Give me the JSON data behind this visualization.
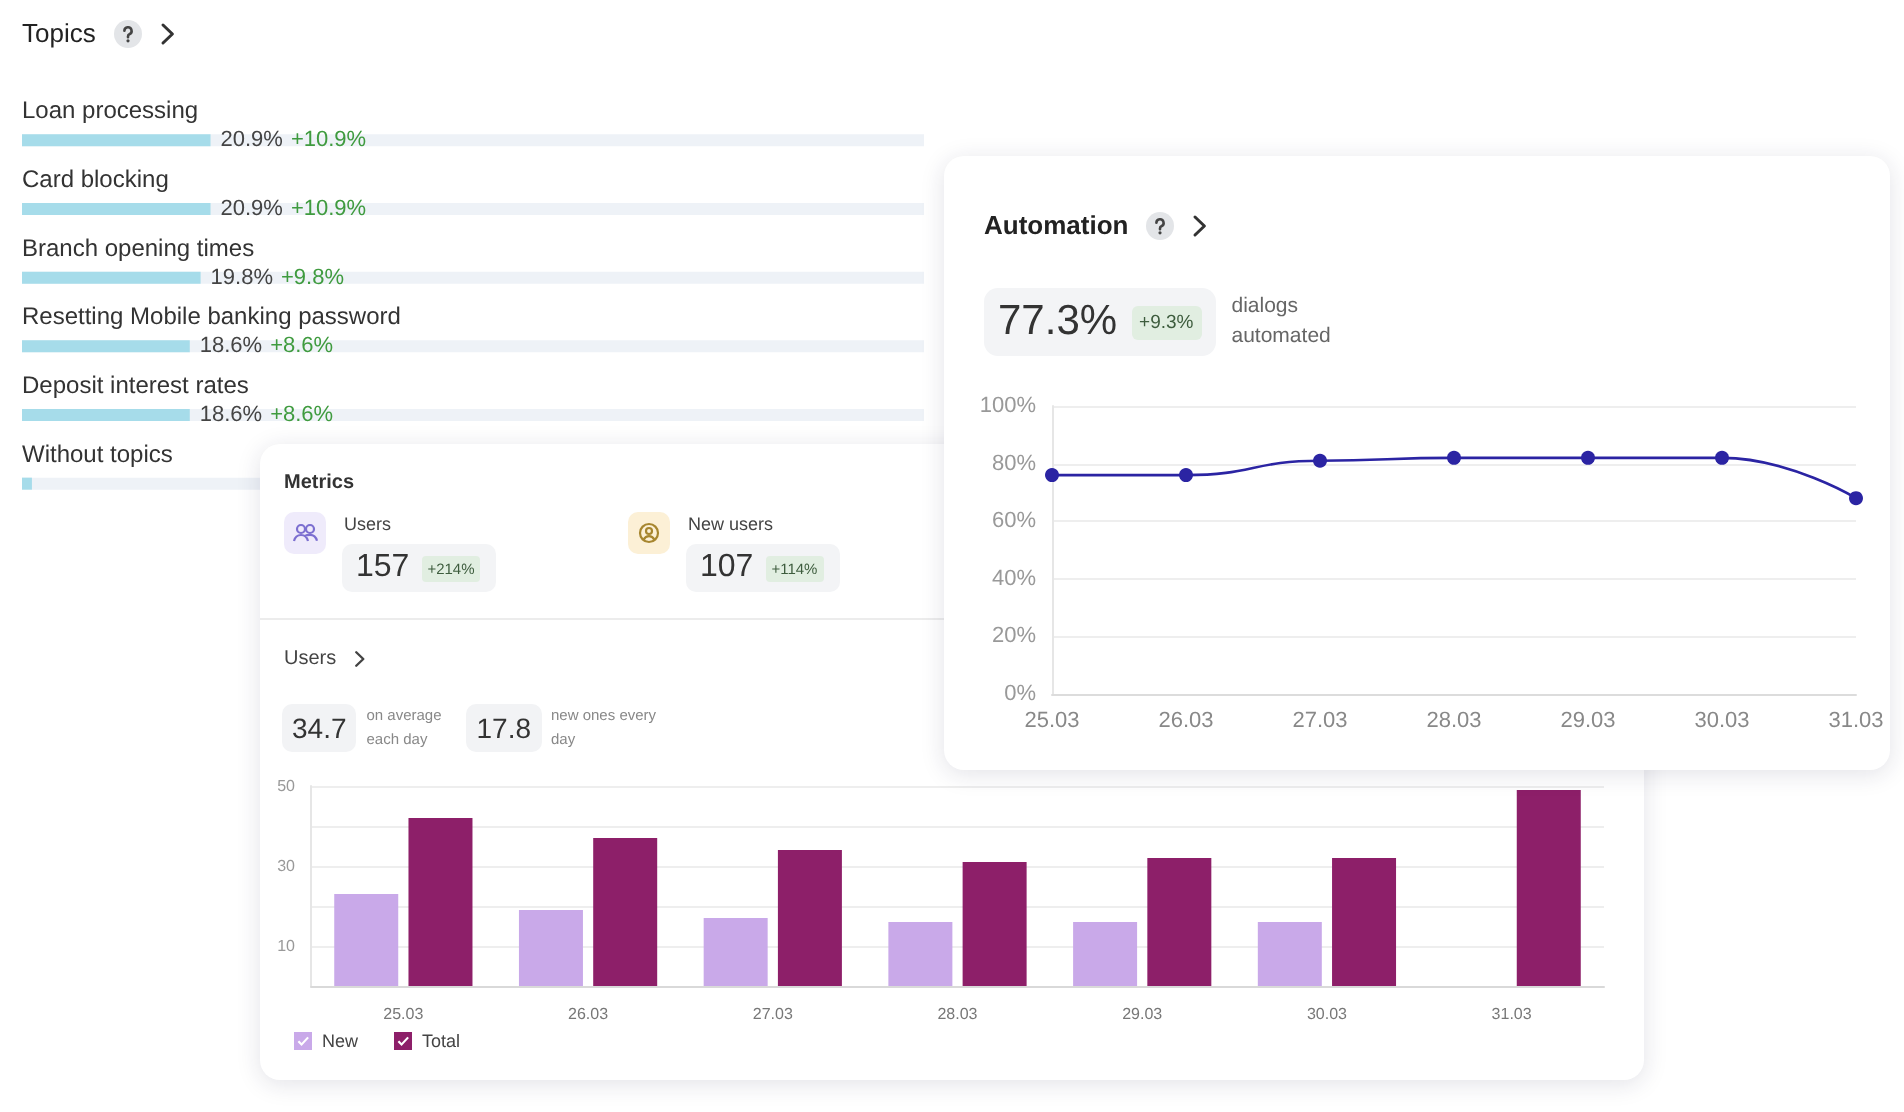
{
  "chart_data": [
    {
      "type": "bar",
      "orientation": "horizontal",
      "title": "Topics",
      "annotations": [
        "+10.9%",
        "+10.9%",
        "+9.8%",
        "+8.6%",
        "+8.6%"
      ],
      "categories": [
        "Loan processing",
        "Card blocking",
        "Branch opening times",
        "Resetting Mobile banking password",
        "Deposit interest rates",
        "Without topics"
      ],
      "values": [
        20.9,
        20.9,
        19.8,
        18.6,
        18.6,
        1.1
      ],
      "value_labels": [
        "20.9%",
        "20.9%",
        "19.8%",
        "18.6%",
        "18.6%",
        null
      ],
      "color": "#a6dcea",
      "xlim": [
        0,
        100
      ],
      "tick_labels": "y"
    },
    {
      "type": "line",
      "title": "Automation",
      "annotations": [
        "77.3%",
        "+9.3%",
        "dialogs automated"
      ],
      "categories": [
        "25.03",
        "26.03",
        "27.03",
        "28.03",
        "29.03",
        "30.03",
        "31.03"
      ],
      "values": [
        76,
        76,
        81,
        82,
        82,
        82,
        68
      ],
      "color": "#2b24a3",
      "ylim": [
        0,
        100
      ],
      "yticks": [
        {
          "value": 0,
          "label": "0%"
        },
        {
          "value": 20,
          "label": "20%"
        },
        {
          "value": 40,
          "label": "40%"
        },
        {
          "value": 60,
          "label": "60%"
        },
        {
          "value": 80,
          "label": "80%"
        },
        {
          "value": 100,
          "label": "100%"
        }
      ],
      "grid": "y",
      "marker": "circle",
      "line_style": "solid"
    },
    {
      "type": "other",
      "title": "Metrics",
      "annotations": [
        "Users",
        "157",
        "+214%",
        "New users",
        "107",
        "+114%"
      ]
    },
    {
      "type": "bar",
      "title": "Users",
      "annotations": [
        "34.7",
        "on average each day",
        "17.8",
        "new ones every day"
      ],
      "categories": [
        "25.03",
        "26.03",
        "27.03",
        "28.03",
        "29.03",
        "30.03",
        "31.03"
      ],
      "series": [
        {
          "name": "New",
          "color": "#c9a9e9",
          "values": [
            23,
            19,
            17,
            16,
            16,
            16,
            null
          ]
        },
        {
          "name": "Total",
          "color": "#8d1f69",
          "values": [
            42,
            37,
            34,
            31,
            32,
            32,
            49
          ]
        }
      ],
      "ylim": [
        0,
        50
      ],
      "yticks": [
        {
          "value": 0,
          "label": null
        },
        10,
        {
          "value": 20,
          "label": null
        },
        30,
        {
          "value": 40,
          "label": null
        },
        50
      ],
      "grid": "y",
      "legend": "bottom left"
    }
  ]
}
